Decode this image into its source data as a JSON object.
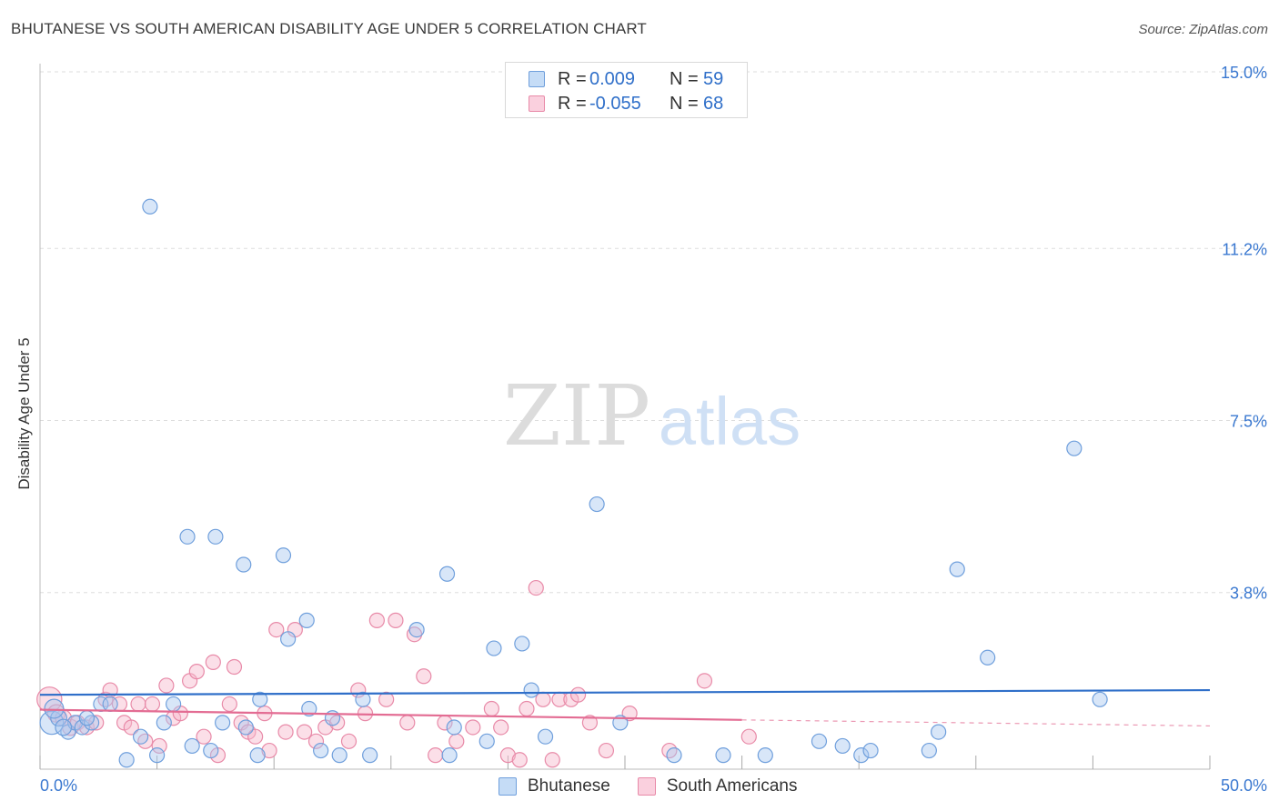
{
  "title": "BHUTANESE VS SOUTH AMERICAN DISABILITY AGE UNDER 5 CORRELATION CHART",
  "source": "Source: ZipAtlas.com",
  "watermark": {
    "zip": "ZIP",
    "atlas": "atlas"
  },
  "legend_top": [
    {
      "r_label": "R =",
      "r_value": "0.009",
      "n_label": "N =",
      "n_value": "59"
    },
    {
      "r_label": "R =",
      "r_value": "-0.055",
      "n_label": "N =",
      "n_value": "68"
    }
  ],
  "legend_bottom": [
    {
      "label": "Bhutanese"
    },
    {
      "label": "South Americans"
    }
  ],
  "colors": {
    "blue_fill": "#a8c8f0",
    "blue_stroke": "#6f9fdc",
    "blue_line": "#2f6fc9",
    "pink_fill": "#f6b8cc",
    "pink_stroke": "#e88aa8",
    "pink_line": "#e36c93",
    "tick_label": "#3a78d0",
    "grid": "#dddddd"
  },
  "chart_data": {
    "type": "scatter",
    "title": "BHUTANESE VS SOUTH AMERICAN DISABILITY AGE UNDER 5 CORRELATION CHART",
    "xlabel": "",
    "ylabel": "Disability Age Under 5",
    "xlim": [
      0,
      50
    ],
    "ylim": [
      0,
      15.6
    ],
    "x_tick_labels": [
      {
        "value": 0,
        "label": "0.0%"
      },
      {
        "value": 50,
        "label": "50.0%"
      }
    ],
    "y_tick_labels": [
      {
        "value": 3.8,
        "label": "3.8%"
      },
      {
        "value": 7.5,
        "label": "7.5%"
      },
      {
        "value": 11.2,
        "label": "11.2%"
      },
      {
        "value": 15.0,
        "label": "15.0%"
      }
    ],
    "grid": true,
    "legend_position": "top-center",
    "series": [
      {
        "name": "Bhutanese",
        "r": 0.009,
        "n": 59,
        "trend": {
          "x": [
            0,
            50
          ],
          "y": [
            1.6,
            1.7
          ]
        },
        "points": [
          [
            0.5,
            1.0,
            1.6
          ],
          [
            0.8,
            1.1,
            1.1
          ],
          [
            1.2,
            0.8,
            1.0
          ],
          [
            1.5,
            1.0,
            1.0
          ],
          [
            1.8,
            0.9,
            1.0
          ],
          [
            2.2,
            1.0,
            1.0
          ],
          [
            2.6,
            1.4,
            1.0
          ],
          [
            3.0,
            1.4,
            1.0
          ],
          [
            3.7,
            0.2,
            1.0
          ],
          [
            4.3,
            0.7,
            1.0
          ],
          [
            4.7,
            12.1,
            1.0
          ],
          [
            5.0,
            0.3,
            1.0
          ],
          [
            5.3,
            1.0,
            1.0
          ],
          [
            5.7,
            1.4,
            1.0
          ],
          [
            6.3,
            5.0,
            1.0
          ],
          [
            6.5,
            0.5,
            1.0
          ],
          [
            7.3,
            0.4,
            1.0
          ],
          [
            7.5,
            5.0,
            1.0
          ],
          [
            7.8,
            1.0,
            1.0
          ],
          [
            8.7,
            4.4,
            1.0
          ],
          [
            8.8,
            0.9,
            1.0
          ],
          [
            9.3,
            0.3,
            1.0
          ],
          [
            9.4,
            1.5,
            1.0
          ],
          [
            10.4,
            4.6,
            1.0
          ],
          [
            10.6,
            2.8,
            1.0
          ],
          [
            11.4,
            3.2,
            1.0
          ],
          [
            11.5,
            1.3,
            1.0
          ],
          [
            12.0,
            0.4,
            1.0
          ],
          [
            12.5,
            1.1,
            1.0
          ],
          [
            12.8,
            0.3,
            1.0
          ],
          [
            13.8,
            1.5,
            1.0
          ],
          [
            14.1,
            0.3,
            1.0
          ],
          [
            16.1,
            3.0,
            1.0
          ],
          [
            17.4,
            4.2,
            1.0
          ],
          [
            17.5,
            0.3,
            1.0
          ],
          [
            17.7,
            0.9,
            1.0
          ],
          [
            19.1,
            0.6,
            1.0
          ],
          [
            19.4,
            2.6,
            1.0
          ],
          [
            20.6,
            2.7,
            1.0
          ],
          [
            21.0,
            1.7,
            1.0
          ],
          [
            21.6,
            0.7,
            1.0
          ],
          [
            23.8,
            5.7,
            1.0
          ],
          [
            24.8,
            1.0,
            1.0
          ],
          [
            27.1,
            0.3,
            1.0
          ],
          [
            29.2,
            0.3,
            1.0
          ],
          [
            31.0,
            0.3,
            1.0
          ],
          [
            33.3,
            0.6,
            1.0
          ],
          [
            34.3,
            0.5,
            1.0
          ],
          [
            35.1,
            0.3,
            1.0
          ],
          [
            35.5,
            0.4,
            1.0
          ],
          [
            38.0,
            0.4,
            1.0
          ],
          [
            38.4,
            0.8,
            1.0
          ],
          [
            39.2,
            4.3,
            1.0
          ],
          [
            40.5,
            2.4,
            1.0
          ],
          [
            44.2,
            6.9,
            1.0
          ],
          [
            45.3,
            1.5,
            1.0
          ],
          [
            0.6,
            1.3,
            1.3
          ],
          [
            1.0,
            0.9,
            1.1
          ],
          [
            2.0,
            1.1,
            1.0
          ]
        ]
      },
      {
        "name": "South Americans",
        "r": -0.055,
        "n": 68,
        "trend": {
          "x": [
            0,
            30
          ],
          "y": [
            1.28,
            1.06
          ]
        },
        "trend_extension": {
          "x": [
            30,
            50
          ],
          "y": [
            1.06,
            0.93
          ]
        },
        "points": [
          [
            0.4,
            1.5,
            1.7
          ],
          [
            0.7,
            1.2,
            1.2
          ],
          [
            1.0,
            1.1,
            1.1
          ],
          [
            1.3,
            0.9,
            1.1
          ],
          [
            1.6,
            1.0,
            1.0
          ],
          [
            2.0,
            0.9,
            1.0
          ],
          [
            2.4,
            1.0,
            1.0
          ],
          [
            2.8,
            1.5,
            1.0
          ],
          [
            3.0,
            1.7,
            1.0
          ],
          [
            3.4,
            1.4,
            1.0
          ],
          [
            3.6,
            1.0,
            1.0
          ],
          [
            3.9,
            0.9,
            1.0
          ],
          [
            4.2,
            1.4,
            1.0
          ],
          [
            4.5,
            0.6,
            1.0
          ],
          [
            4.8,
            1.4,
            1.0
          ],
          [
            5.1,
            0.5,
            1.0
          ],
          [
            5.4,
            1.8,
            1.0
          ],
          [
            5.7,
            1.1,
            1.0
          ],
          [
            6.0,
            1.2,
            1.0
          ],
          [
            6.4,
            1.9,
            1.0
          ],
          [
            6.7,
            2.1,
            1.0
          ],
          [
            7.0,
            0.7,
            1.0
          ],
          [
            7.4,
            2.3,
            1.0
          ],
          [
            7.6,
            0.3,
            1.0
          ],
          [
            8.1,
            1.4,
            1.0
          ],
          [
            8.3,
            2.2,
            1.0
          ],
          [
            8.6,
            1.0,
            1.0
          ],
          [
            8.9,
            0.8,
            1.0
          ],
          [
            9.2,
            0.7,
            1.0
          ],
          [
            9.6,
            1.2,
            1.0
          ],
          [
            9.8,
            0.4,
            1.0
          ],
          [
            10.1,
            3.0,
            1.0
          ],
          [
            10.5,
            0.8,
            1.0
          ],
          [
            10.9,
            3.0,
            1.0
          ],
          [
            11.3,
            0.8,
            1.0
          ],
          [
            11.8,
            0.6,
            1.0
          ],
          [
            12.2,
            0.9,
            1.0
          ],
          [
            12.7,
            1.0,
            1.0
          ],
          [
            13.2,
            0.6,
            1.0
          ],
          [
            13.6,
            1.7,
            1.0
          ],
          [
            13.9,
            1.2,
            1.0
          ],
          [
            14.4,
            3.2,
            1.0
          ],
          [
            14.8,
            1.5,
            1.0
          ],
          [
            15.2,
            3.2,
            1.0
          ],
          [
            15.7,
            1.0,
            1.0
          ],
          [
            16.0,
            2.9,
            1.0
          ],
          [
            16.4,
            2.0,
            1.0
          ],
          [
            16.9,
            0.3,
            1.0
          ],
          [
            17.3,
            1.0,
            1.0
          ],
          [
            17.8,
            0.6,
            1.0
          ],
          [
            18.5,
            0.9,
            1.0
          ],
          [
            19.3,
            1.3,
            1.0
          ],
          [
            19.7,
            0.9,
            1.0
          ],
          [
            20.0,
            0.3,
            1.0
          ],
          [
            20.5,
            0.2,
            1.0
          ],
          [
            20.8,
            1.3,
            1.0
          ],
          [
            21.2,
            3.9,
            1.0
          ],
          [
            21.5,
            1.5,
            1.0
          ],
          [
            21.9,
            0.2,
            1.0
          ],
          [
            22.2,
            1.5,
            1.0
          ],
          [
            22.7,
            1.5,
            1.0
          ],
          [
            23.0,
            1.6,
            1.0
          ],
          [
            23.5,
            1.0,
            1.0
          ],
          [
            24.2,
            0.4,
            1.0
          ],
          [
            25.2,
            1.2,
            1.0
          ],
          [
            26.9,
            0.4,
            1.0
          ],
          [
            28.4,
            1.9,
            1.0
          ],
          [
            30.3,
            0.7,
            1.0
          ]
        ]
      }
    ]
  }
}
